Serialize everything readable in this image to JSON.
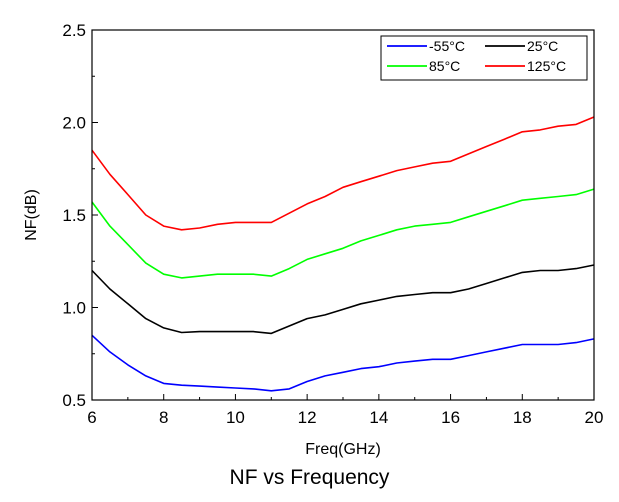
{
  "chart_data": {
    "type": "line",
    "title": "NF vs  Frequency",
    "xlabel": "Freq(GHz)",
    "ylabel": "NF(dB)",
    "xlim": [
      6,
      20
    ],
    "ylim": [
      0.5,
      2.5
    ],
    "xticks": [
      6,
      8,
      10,
      12,
      14,
      16,
      18,
      20
    ],
    "yticks": [
      0.5,
      1.0,
      1.5,
      2.0,
      2.5
    ],
    "x_tick_labels": [
      "6",
      "8",
      "10",
      "12",
      "14",
      "16",
      "18",
      "20"
    ],
    "y_tick_labels": [
      "0.5",
      "1.0",
      "1.5",
      "2.0",
      "2.5"
    ],
    "grid": false,
    "legend_position": "top-right",
    "series": [
      {
        "name": "-55°C",
        "color": "#0000ff",
        "x": [
          6,
          6.5,
          7,
          7.5,
          8,
          8.5,
          9,
          9.5,
          10,
          10.5,
          11,
          11.5,
          12,
          12.5,
          13,
          13.5,
          14,
          14.5,
          15,
          15.5,
          16,
          16.5,
          17,
          17.5,
          18,
          18.5,
          19,
          19.5,
          20
        ],
        "values": [
          0.85,
          0.76,
          0.69,
          0.63,
          0.59,
          0.58,
          0.575,
          0.57,
          0.565,
          0.56,
          0.55,
          0.56,
          0.6,
          0.63,
          0.65,
          0.67,
          0.68,
          0.7,
          0.71,
          0.72,
          0.72,
          0.74,
          0.76,
          0.78,
          0.8,
          0.8,
          0.8,
          0.81,
          0.83
        ]
      },
      {
        "name": "25°C",
        "color": "#000000",
        "x": [
          6,
          6.5,
          7,
          7.5,
          8,
          8.5,
          9,
          9.5,
          10,
          10.5,
          11,
          11.5,
          12,
          12.5,
          13,
          13.5,
          14,
          14.5,
          15,
          15.5,
          16,
          16.5,
          17,
          17.5,
          18,
          18.5,
          19,
          19.5,
          20
        ],
        "values": [
          1.2,
          1.1,
          1.02,
          0.94,
          0.89,
          0.865,
          0.87,
          0.87,
          0.87,
          0.87,
          0.86,
          0.9,
          0.94,
          0.96,
          0.99,
          1.02,
          1.04,
          1.06,
          1.07,
          1.08,
          1.08,
          1.1,
          1.13,
          1.16,
          1.19,
          1.2,
          1.2,
          1.21,
          1.23
        ]
      },
      {
        "name": "85°C",
        "color": "#00ff00",
        "x": [
          6,
          6.5,
          7,
          7.5,
          8,
          8.5,
          9,
          9.5,
          10,
          10.5,
          11,
          11.5,
          12,
          12.5,
          13,
          13.5,
          14,
          14.5,
          15,
          15.5,
          16,
          16.5,
          17,
          17.5,
          18,
          18.5,
          19,
          19.5,
          20
        ],
        "values": [
          1.57,
          1.44,
          1.34,
          1.24,
          1.18,
          1.16,
          1.17,
          1.18,
          1.18,
          1.18,
          1.17,
          1.21,
          1.26,
          1.29,
          1.32,
          1.36,
          1.39,
          1.42,
          1.44,
          1.45,
          1.46,
          1.49,
          1.52,
          1.55,
          1.58,
          1.59,
          1.6,
          1.61,
          1.64
        ]
      },
      {
        "name": "125°C",
        "color": "#ff0000",
        "x": [
          6,
          6.5,
          7,
          7.5,
          8,
          8.5,
          9,
          9.5,
          10,
          10.5,
          11,
          11.5,
          12,
          12.5,
          13,
          13.5,
          14,
          14.5,
          15,
          15.5,
          16,
          16.5,
          17,
          17.5,
          18,
          18.5,
          19,
          19.5,
          20
        ],
        "values": [
          1.85,
          1.72,
          1.61,
          1.5,
          1.44,
          1.42,
          1.43,
          1.45,
          1.46,
          1.46,
          1.46,
          1.51,
          1.56,
          1.6,
          1.65,
          1.68,
          1.71,
          1.74,
          1.76,
          1.78,
          1.79,
          1.83,
          1.87,
          1.91,
          1.95,
          1.96,
          1.98,
          1.99,
          2.03
        ]
      }
    ]
  }
}
